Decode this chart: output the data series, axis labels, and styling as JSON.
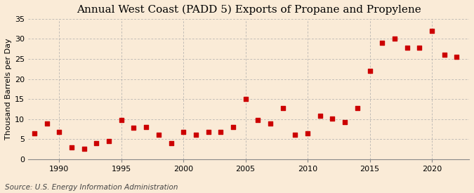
{
  "title": "Annual West Coast (PADD 5) Exports of Propane and Propylene",
  "ylabel": "Thousand Barrels per Day",
  "source": "Source: U.S. Energy Information Administration",
  "background_color": "#faebd7",
  "years": [
    1988,
    1989,
    1990,
    1991,
    1992,
    1993,
    1994,
    1995,
    1996,
    1997,
    1998,
    1999,
    2000,
    2001,
    2002,
    2003,
    2004,
    2005,
    2006,
    2007,
    2008,
    2009,
    2010,
    2011,
    2012,
    2013,
    2014,
    2015,
    2016,
    2017,
    2018,
    2019,
    2020,
    2021,
    2022
  ],
  "values": [
    6.5,
    9.0,
    6.8,
    3.0,
    2.7,
    4.0,
    4.5,
    9.8,
    7.8,
    8.0,
    6.2,
    4.0,
    6.8,
    6.2,
    6.8,
    6.8,
    8.0,
    15.0,
    9.8,
    9.0,
    12.8,
    6.2,
    6.5,
    10.8,
    10.2,
    9.2,
    12.8,
    22.0,
    29.0,
    30.0,
    27.8,
    27.8,
    32.0,
    26.0,
    25.5
  ],
  "marker_color": "#cc0000",
  "marker_size": 14,
  "xlim": [
    1987.5,
    2023
  ],
  "ylim": [
    0,
    35
  ],
  "yticks": [
    0,
    5,
    10,
    15,
    20,
    25,
    30,
    35
  ],
  "xticks": [
    1990,
    1995,
    2000,
    2005,
    2010,
    2015,
    2020
  ],
  "grid_color": "#aaaaaa",
  "title_fontsize": 11,
  "label_fontsize": 8,
  "tick_fontsize": 8,
  "source_fontsize": 7.5
}
